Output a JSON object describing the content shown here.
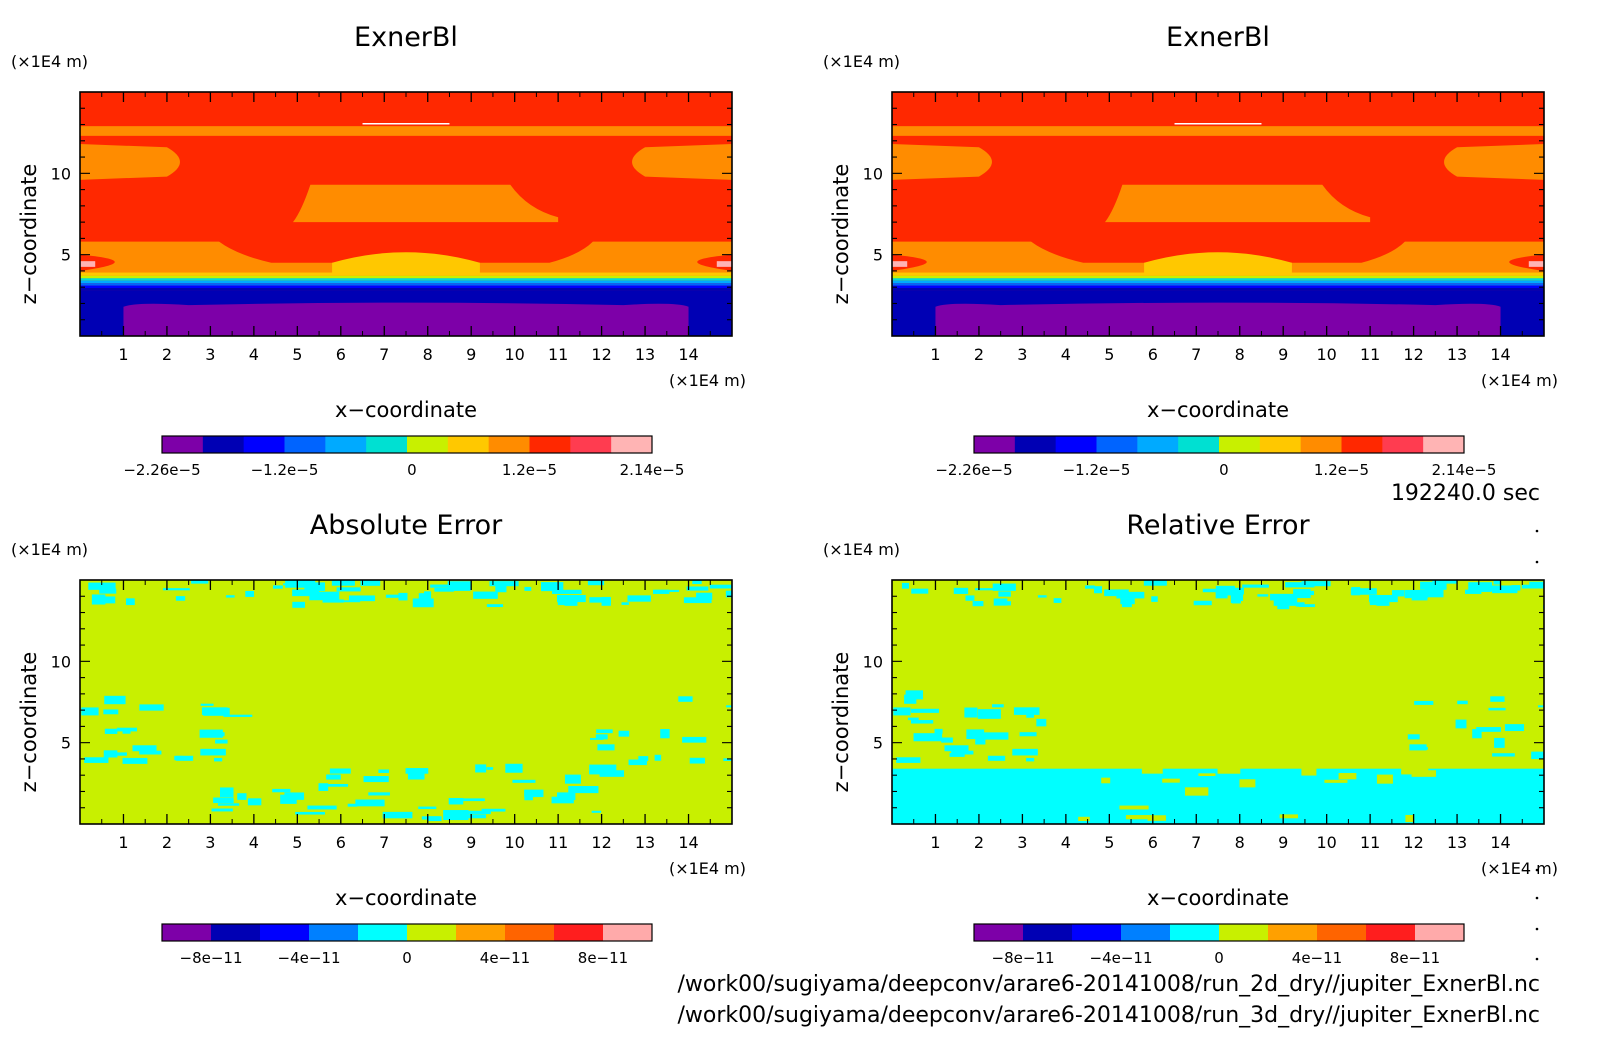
{
  "time_label": "192240.0 sec",
  "files": [
    "/work00/sugiyama/deepconv/arare6-20141008/run_2d_dry//jupiter_ExnerBl.nc",
    "/work00/sugiyama/deepconv/arare6-20141008/run_3d_dry//jupiter_ExnerBl.nc"
  ],
  "chart_data": [
    {
      "type": "heatmap",
      "title": "ExnerBl",
      "xlabel": "x−coordinate",
      "ylabel": "z−coordinate",
      "x_unit": "(×1E4 m)",
      "y_unit": "(×1E4 m)",
      "xlim": [
        0,
        15
      ],
      "ylim": [
        0,
        15
      ],
      "x_ticks": [
        1,
        2,
        3,
        4,
        5,
        6,
        7,
        8,
        9,
        10,
        11,
        12,
        13,
        14
      ],
      "y_ticks": [
        5,
        10
      ],
      "colorbar": {
        "colors": [
          "#7d00a8",
          "#0000b4",
          "#0000ff",
          "#0064ff",
          "#00aaff",
          "#00e0d2",
          "#c8f000",
          "#ffc800",
          "#ff8c00",
          "#ff2800",
          "#ff3c50",
          "#ffb4b4"
        ],
        "tick_labels": [
          "−2.26e−5",
          "−1.2e−5",
          "0",
          "1.2e−5",
          "2.14e−5"
        ],
        "range": [
          -2.26e-05,
          2.14e-05
        ]
      },
      "pattern": "exner"
    },
    {
      "type": "heatmap",
      "title": "ExnerBl",
      "xlabel": "x−coordinate",
      "ylabel": "z−coordinate",
      "x_unit": "(×1E4 m)",
      "y_unit": "(×1E4 m)",
      "xlim": [
        0,
        15
      ],
      "ylim": [
        0,
        15
      ],
      "x_ticks": [
        1,
        2,
        3,
        4,
        5,
        6,
        7,
        8,
        9,
        10,
        11,
        12,
        13,
        14
      ],
      "y_ticks": [
        5,
        10
      ],
      "colorbar": {
        "colors": [
          "#7d00a8",
          "#0000b4",
          "#0000ff",
          "#0064ff",
          "#00aaff",
          "#00e0d2",
          "#c8f000",
          "#ffc800",
          "#ff8c00",
          "#ff2800",
          "#ff3c50",
          "#ffb4b4"
        ],
        "tick_labels": [
          "−2.26e−5",
          "−1.2e−5",
          "0",
          "1.2e−5",
          "2.14e−5"
        ],
        "range": [
          -2.26e-05,
          2.14e-05
        ]
      },
      "pattern": "exner"
    },
    {
      "type": "heatmap",
      "title": "Absolute Error",
      "xlabel": "x−coordinate",
      "ylabel": "z−coordinate",
      "x_unit": "(×1E4 m)",
      "y_unit": "(×1E4 m)",
      "xlim": [
        0,
        15
      ],
      "ylim": [
        0,
        15
      ],
      "x_ticks": [
        1,
        2,
        3,
        4,
        5,
        6,
        7,
        8,
        9,
        10,
        11,
        12,
        13,
        14
      ],
      "y_ticks": [
        5,
        10
      ],
      "colorbar": {
        "colors": [
          "#7d00a8",
          "#0000b4",
          "#0000ff",
          "#0080ff",
          "#00ffff",
          "#c8f000",
          "#ffa000",
          "#ff6400",
          "#ff1e1e",
          "#ffaaaa"
        ],
        "tick_labels": [
          "−8e−11",
          "−4e−11",
          "0",
          "4e−11",
          "8e−11"
        ],
        "range": [
          -1e-10,
          1e-10
        ]
      },
      "pattern": "abs"
    },
    {
      "type": "heatmap",
      "title": "Relative Error",
      "xlabel": "x−coordinate",
      "ylabel": "z−coordinate",
      "x_unit": "(×1E4 m)",
      "y_unit": "(×1E4 m)",
      "xlim": [
        0,
        15
      ],
      "ylim": [
        0,
        15
      ],
      "x_ticks": [
        1,
        2,
        3,
        4,
        5,
        6,
        7,
        8,
        9,
        10,
        11,
        12,
        13,
        14
      ],
      "y_ticks": [
        5,
        10
      ],
      "colorbar": {
        "colors": [
          "#7d00a8",
          "#0000b4",
          "#0000ff",
          "#0080ff",
          "#00ffff",
          "#c8f000",
          "#ffa000",
          "#ff6400",
          "#ff1e1e",
          "#ffaaaa"
        ],
        "tick_labels": [
          "−8e−11",
          "−4e−11",
          "0",
          "4e−11",
          "8e−11"
        ],
        "range": [
          -1e-10,
          1e-10
        ]
      },
      "pattern": "rel"
    }
  ]
}
